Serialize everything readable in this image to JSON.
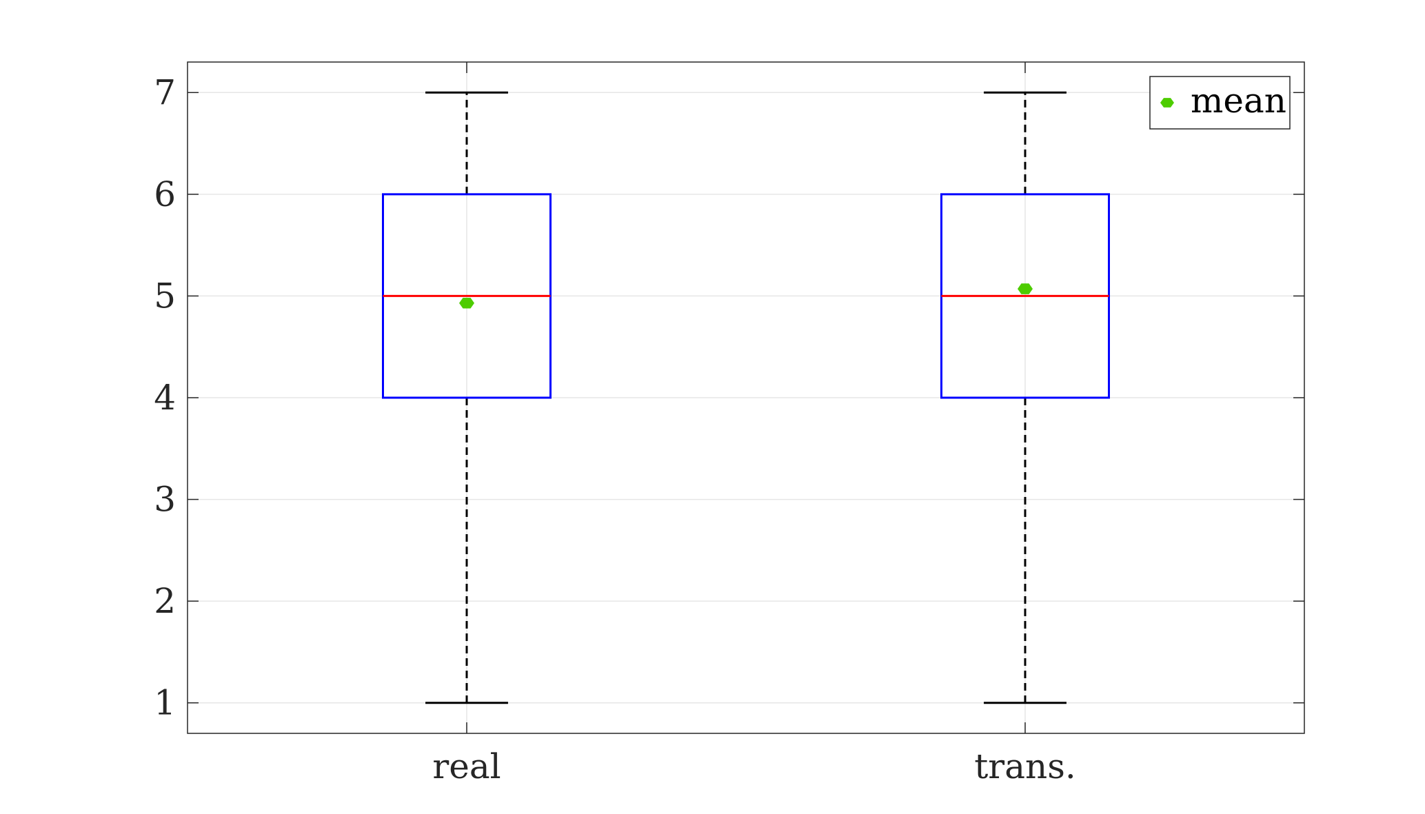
{
  "chart_data": {
    "type": "box",
    "title": "",
    "xlabel": "",
    "ylabel": "",
    "ylim": [
      0.7,
      7.3
    ],
    "yticks": [
      1,
      2,
      3,
      4,
      5,
      6,
      7
    ],
    "grid": true,
    "legend": {
      "position": "top-right",
      "entries": [
        "mean"
      ]
    },
    "categories": [
      "real",
      "trans."
    ],
    "boxes": [
      {
        "category": "real",
        "min": 1,
        "q1": 4,
        "median": 5,
        "q3": 6,
        "max": 7,
        "mean": 4.93
      },
      {
        "category": "trans.",
        "min": 1,
        "q1": 4,
        "median": 5,
        "q3": 6,
        "max": 7,
        "mean": 5.07
      }
    ],
    "colors": {
      "box": "#0000ff",
      "median": "#ff0000",
      "whisker": "#000000",
      "mean": "#4dcc00",
      "grid": "#e6e6e6",
      "axis": "#262626"
    }
  }
}
